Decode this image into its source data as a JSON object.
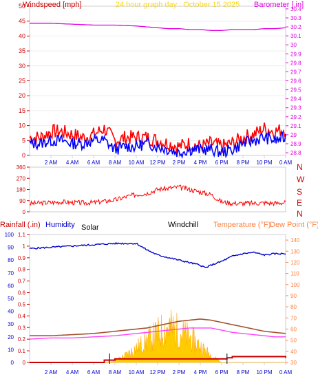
{
  "title": "24 hour graph day : October 15 2025",
  "colors": {
    "title": "#ffd700",
    "wind": "#ff0000",
    "gust_dark": "#0000cc",
    "baro": "#e000e0",
    "dir": "#ff0000",
    "humidity": "#0000cc",
    "temperature": "#ff8040",
    "dewpoint": "#ff8040",
    "temp_line": "#a0522d",
    "dew_line": "#ff40ff",
    "solar": "#ffcc00",
    "rain": "#cc0000",
    "axis_grey": "#cccccc"
  },
  "x_ticks": [
    "2 AM",
    "4 AM",
    "6 AM",
    "8 AM",
    "10 AM",
    "12 PM",
    "2 PM",
    "4 PM",
    "6 PM",
    "8 PM",
    "10 PM",
    "0 AM"
  ],
  "chart_data": [
    {
      "type": "line",
      "name": "wind_baro",
      "left_axis_label": "Windspeed [mph]",
      "right_axis_label": "Barometer [.in]",
      "left_ticks": [
        0,
        5,
        10,
        15,
        20,
        25,
        30,
        35,
        40,
        45,
        50
      ],
      "ylim_left": [
        0,
        50
      ],
      "right_ticks": [
        "28.8",
        "28.9",
        "29",
        "29.1",
        "29.2",
        "29.3",
        "29.4",
        "29.5",
        "29.6",
        "29.7",
        "29.8",
        "29.9",
        "30",
        "30.1",
        "30.2",
        "30.3",
        "30.4"
      ],
      "ylim_right": [
        28.77,
        30.43
      ],
      "barometer": {
        "x": [
          0,
          2,
          4,
          6,
          8,
          10,
          11,
          12,
          13,
          14,
          15,
          16,
          17,
          18,
          19,
          20,
          21,
          22,
          23,
          24
        ],
        "values": [
          30.24,
          30.24,
          30.23,
          30.22,
          30.22,
          30.21,
          30.2,
          30.19,
          30.18,
          30.18,
          30.17,
          30.17,
          30.16,
          30.16,
          30.17,
          30.17,
          30.17,
          30.18,
          30.18,
          30.19
        ]
      },
      "wind_gust": {
        "x": [
          0,
          1,
          2,
          3,
          4,
          5,
          6,
          7,
          8,
          9,
          10,
          11,
          12,
          13,
          14,
          15,
          16,
          17,
          18,
          19,
          20,
          21,
          22,
          23,
          24
        ],
        "values": [
          6,
          6,
          8,
          8,
          7,
          6,
          7,
          9,
          5,
          6,
          6,
          6,
          5,
          4,
          3,
          4,
          3,
          4,
          3,
          4,
          6,
          7,
          9,
          8,
          9
        ]
      },
      "wind_avg": {
        "x": [
          0,
          1,
          2,
          3,
          4,
          5,
          6,
          7,
          8,
          9,
          10,
          11,
          12,
          13,
          14,
          15,
          16,
          17,
          18,
          19,
          20,
          21,
          22,
          23,
          24
        ],
        "values": [
          4,
          4,
          5,
          5,
          4,
          4,
          5,
          5,
          2,
          3,
          3,
          4,
          3,
          2,
          1,
          2,
          2,
          2,
          1,
          2,
          4,
          5,
          6,
          5,
          6
        ]
      }
    },
    {
      "type": "line",
      "name": "wind_direction",
      "left_ticks": [
        0,
        90,
        180,
        270,
        360
      ],
      "ylim_left": [
        0,
        360
      ],
      "right_labels": [
        "N",
        "W",
        "S",
        "E",
        "N"
      ],
      "direction": {
        "x": [
          0,
          1,
          2,
          3,
          4,
          5,
          6,
          7,
          8,
          9,
          10,
          11,
          12,
          13,
          14,
          15,
          16,
          17,
          18,
          19,
          20,
          21,
          22,
          23,
          24
        ],
        "values": [
          65,
          72,
          75,
          80,
          75,
          72,
          75,
          85,
          95,
          120,
          140,
          150,
          180,
          190,
          200,
          180,
          160,
          140,
          80,
          70,
          68,
          70,
          72,
          70,
          75
        ]
      }
    },
    {
      "type": "area",
      "name": "temp_humidity_solar_rain",
      "labels": {
        "rainfall": "Rainfall (.in)",
        "humidity": "Humidity",
        "solar": "Solar",
        "windchill": "Windchill",
        "temperature": "Temperature (°F)",
        "dewpoint": "Dew Point (°F)"
      },
      "humidity_ticks": [
        0,
        10,
        20,
        30,
        40,
        50,
        60,
        70,
        80,
        90,
        100
      ],
      "ylim_humidity": [
        0,
        100
      ],
      "rain_ticks": [
        "0",
        "0.1",
        "0.2",
        "0.3",
        "0.4",
        "0.5",
        "0.6",
        "0.7",
        "0.8",
        "0.9",
        "1",
        "1.1"
      ],
      "ylim_rain": [
        0,
        1.1
      ],
      "temp_ticks": [
        30,
        40,
        50,
        60,
        70,
        80,
        90,
        100,
        110,
        120,
        130,
        140
      ],
      "ylim_temp": [
        30,
        145
      ],
      "humidity": {
        "x": [
          0,
          2,
          4,
          6,
          8,
          10,
          11,
          12,
          13,
          14,
          15,
          16,
          16.5,
          17,
          18,
          19,
          20,
          21,
          22,
          23,
          24
        ],
        "values": [
          89,
          90,
          91,
          92,
          93,
          93,
          88,
          84,
          82,
          80,
          78,
          76,
          74,
          76,
          79,
          83,
          85,
          86,
          84,
          85,
          85
        ]
      },
      "temperature": {
        "x": [
          0,
          2,
          4,
          6,
          8,
          10,
          11,
          12,
          13,
          14,
          15,
          16,
          17,
          18,
          19,
          20,
          21,
          22,
          23,
          24
        ],
        "values": [
          54,
          54,
          55,
          56,
          58,
          60,
          61,
          63,
          65,
          67,
          68,
          69,
          68,
          66,
          64,
          62,
          60,
          58,
          57,
          56
        ]
      },
      "dewpoint": {
        "x": [
          0,
          2,
          4,
          6,
          8,
          10,
          11,
          12,
          13,
          14,
          15,
          16,
          17,
          18,
          19,
          20,
          21,
          22,
          23,
          24
        ],
        "values": [
          51,
          52,
          52,
          53,
          54,
          56,
          57,
          58,
          59,
          60,
          61,
          61,
          61,
          59,
          57,
          56,
          55,
          54,
          53,
          53
        ]
      },
      "solar": {
        "x": [
          0,
          7,
          8,
          9,
          10,
          11,
          12,
          13,
          14,
          15,
          16,
          17,
          18,
          24
        ],
        "values": [
          0,
          0,
          5,
          20,
          40,
          60,
          80,
          100,
          85,
          70,
          45,
          20,
          0,
          0
        ]
      },
      "rainfall": {
        "x": [
          0,
          5,
          7,
          7.5,
          8,
          18.5,
          19,
          23,
          24
        ],
        "values": [
          0,
          0,
          0.02,
          0.02,
          0.03,
          0.04,
          0.05,
          0.05,
          0.04
        ]
      }
    }
  ]
}
